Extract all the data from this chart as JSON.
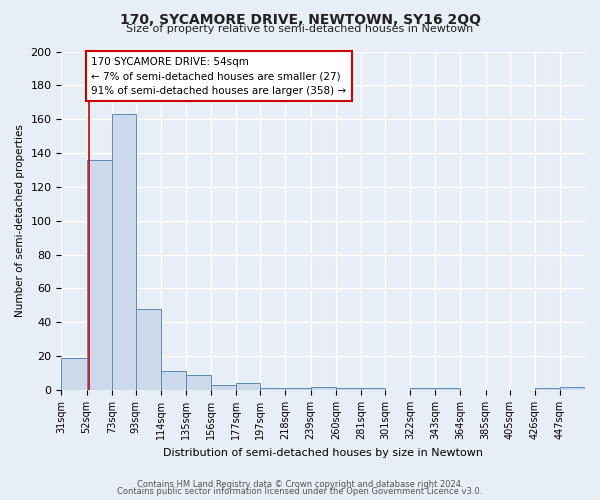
{
  "title": "170, SYCAMORE DRIVE, NEWTOWN, SY16 2QQ",
  "subtitle": "Size of property relative to semi-detached houses in Newtown",
  "xlabel": "Distribution of semi-detached houses by size in Newtown",
  "ylabel": "Number of semi-detached properties",
  "bar_values": [
    19,
    136,
    163,
    48,
    11,
    9,
    3,
    4,
    1,
    1,
    2,
    1,
    1,
    0,
    1,
    1,
    0,
    0,
    0,
    1,
    2
  ],
  "bar_labels": [
    "31sqm",
    "52sqm",
    "73sqm",
    "93sqm",
    "114sqm",
    "135sqm",
    "156sqm",
    "177sqm",
    "197sqm",
    "218sqm",
    "239sqm",
    "260sqm",
    "281sqm",
    "301sqm",
    "322sqm",
    "343sqm",
    "364sqm",
    "385sqm",
    "405sqm",
    "426sqm",
    "447sqm"
  ],
  "bar_color": "#ccd9ea",
  "bar_edge_color": "#5b8db8",
  "bar_linewidth": 0.7,
  "property_line_x": 54,
  "property_line_color": "#cc0000",
  "annotation_title": "170 SYCAMORE DRIVE: 54sqm",
  "annotation_line1": "← 7% of semi-detached houses are smaller (27)",
  "annotation_line2": "91% of semi-detached houses are larger (358) →",
  "annotation_box_facecolor": "#ffffff",
  "annotation_box_edgecolor": "#cc0000",
  "ylim": [
    0,
    200
  ],
  "yticks": [
    0,
    20,
    40,
    60,
    80,
    100,
    120,
    140,
    160,
    180,
    200
  ],
  "footer1": "Contains HM Land Registry data © Crown copyright and database right 2024.",
  "footer2": "Contains public sector information licensed under the Open Government Licence v3.0.",
  "bg_color": "#e8eef5",
  "plot_bg_color": "#e8eef5",
  "grid_color": "#ffffff",
  "bin_edges": [
    31,
    52,
    73,
    93,
    114,
    135,
    156,
    177,
    197,
    218,
    239,
    260,
    281,
    301,
    322,
    343,
    364,
    385,
    405,
    426,
    447,
    468
  ]
}
